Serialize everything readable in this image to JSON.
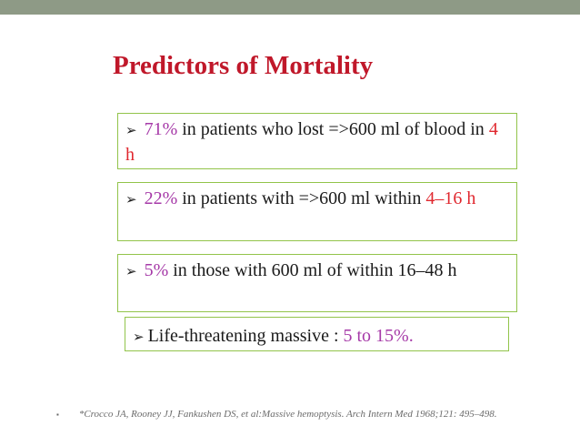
{
  "slide": {
    "title": "Predictors of Mortality",
    "colors": {
      "title": "#c0182a",
      "highlight_magenta": "#a63aa8",
      "highlight_red": "#e0282f",
      "box_border": "#92c44a",
      "top_bar": "#8e9a86"
    },
    "boxes": [
      {
        "bullet_icon": "arrow-bullet-icon",
        "pct": "71%",
        "text": " in patients who lost =>600 ml of blood in ",
        "time": "4 h"
      },
      {
        "bullet_icon": "arrow-bullet-icon",
        "pct": "22%",
        "text": " in patients with  =>600 ml within ",
        "time": "4–16 h"
      },
      {
        "bullet_icon": "arrow-bullet-icon",
        "pct": "5%",
        "text": " in those with 600 ml of  within 16–48 h"
      },
      {
        "bullet_icon": "arrow-bullet-icon",
        "text": "Life-threatening massive : ",
        "range": "5 to 15%."
      }
    ],
    "footnote": {
      "marker": "▪",
      "text": "*Crocco JA, Rooney JJ, Fankushen DS, et al:Massive hemoptysis. Arch Intern Med 1968;121: 495–498."
    }
  }
}
